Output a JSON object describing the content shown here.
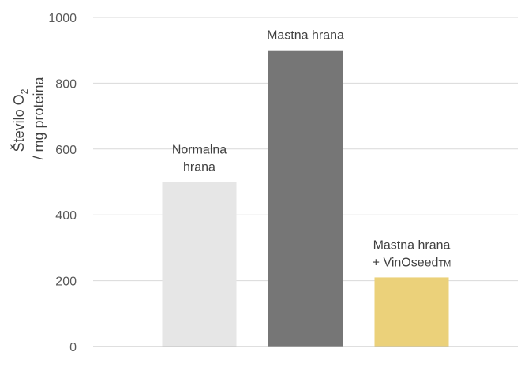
{
  "chart_data": {
    "type": "bar",
    "categories": [
      "Normalna hrana",
      "Mastna hrana",
      "Mastna hrana + VinOseedTM"
    ],
    "category_label_lines": [
      [
        {
          "text": "Normalna"
        },
        {
          "text": "hrana"
        }
      ],
      [
        {
          "text": "Mastna hrana"
        }
      ],
      [
        {
          "text": "Mastna hrana"
        },
        {
          "text": "+ VinOseed",
          "sup": "TM"
        }
      ]
    ],
    "values": [
      500,
      900,
      210
    ],
    "colors": [
      "#e6e6e6",
      "#767676",
      "#ebd17a"
    ],
    "ylabel_line1": "Število O",
    "ylabel_line1_sub": "2",
    "ylabel_line2": "/ mg  proteina",
    "ylim": [
      0,
      1000
    ],
    "yticks": [
      "0",
      "200",
      "400",
      "600",
      "800",
      "1000"
    ],
    "grid": true,
    "legend": "none"
  }
}
